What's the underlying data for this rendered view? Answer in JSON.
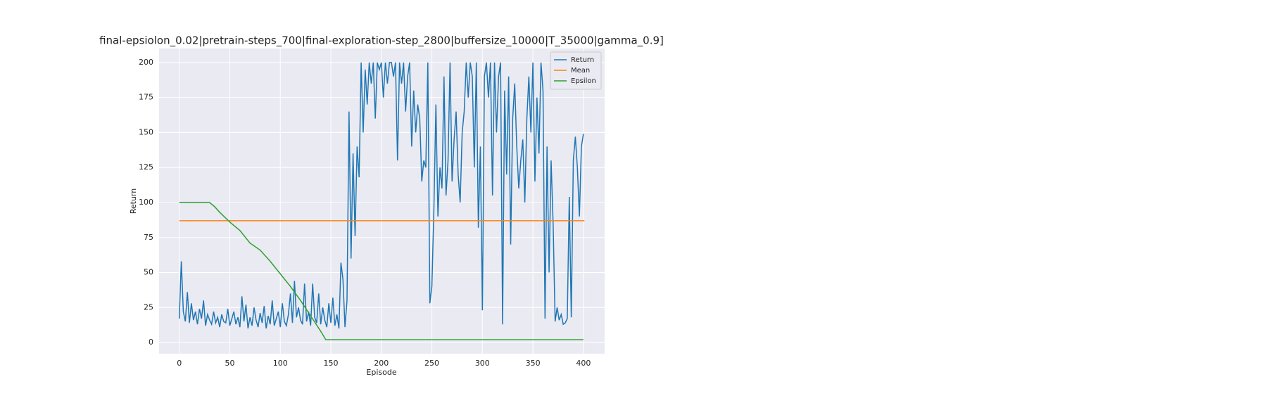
{
  "chart_data": {
    "type": "line",
    "title": "final-epsiolon_0.02|pretrain-steps_700|final-exploration-step_2800|buffersize_10000|T_35000|gamma_0.9]",
    "x_label": "Episode",
    "y_label": "Return",
    "xlim": [
      -20,
      421
    ],
    "ylim": [
      -8,
      210
    ],
    "xticks": [
      0,
      50,
      100,
      150,
      200,
      250,
      300,
      350,
      400
    ],
    "yticks": [
      0,
      25,
      50,
      75,
      100,
      125,
      150,
      175,
      200
    ],
    "grid": true,
    "legend": "upper right",
    "series": [
      {
        "name": "Return",
        "color": "#1f77b4",
        "x": [
          0,
          2,
          4,
          6,
          8,
          10,
          12,
          14,
          16,
          18,
          20,
          22,
          24,
          26,
          28,
          30,
          32,
          34,
          36,
          38,
          40,
          42,
          44,
          46,
          48,
          50,
          52,
          54,
          56,
          58,
          60,
          62,
          64,
          66,
          68,
          70,
          72,
          74,
          76,
          78,
          80,
          82,
          84,
          86,
          88,
          90,
          92,
          94,
          96,
          98,
          100,
          102,
          104,
          106,
          108,
          110,
          112,
          114,
          116,
          118,
          120,
          122,
          124,
          126,
          128,
          130,
          132,
          134,
          136,
          138,
          140,
          142,
          144,
          146,
          148,
          150,
          152,
          154,
          156,
          158,
          160,
          162,
          164,
          166,
          168,
          170,
          172,
          174,
          176,
          178,
          180,
          182,
          184,
          186,
          188,
          190,
          192,
          194,
          196,
          198,
          200,
          202,
          204,
          206,
          208,
          210,
          212,
          214,
          216,
          218,
          220,
          222,
          224,
          226,
          228,
          230,
          232,
          234,
          236,
          238,
          240,
          242,
          244,
          246,
          248,
          250,
          252,
          254,
          256,
          258,
          260,
          262,
          264,
          266,
          268,
          270,
          272,
          274,
          276,
          278,
          280,
          282,
          284,
          286,
          288,
          290,
          292,
          294,
          296,
          298,
          300,
          302,
          304,
          306,
          308,
          310,
          312,
          314,
          316,
          318,
          320,
          322,
          324,
          326,
          328,
          330,
          332,
          334,
          336,
          338,
          340,
          342,
          344,
          346,
          348,
          350,
          352,
          354,
          356,
          358,
          360,
          362,
          364,
          366,
          368,
          370,
          372,
          374,
          376,
          378,
          380,
          382,
          384,
          386,
          388,
          390,
          392,
          394,
          396,
          398,
          400
        ],
        "values": [
          17,
          58,
          22,
          15,
          36,
          14,
          28,
          16,
          22,
          13,
          24,
          17,
          30,
          12,
          20,
          16,
          13,
          22,
          14,
          18,
          11,
          20,
          15,
          14,
          24,
          12,
          17,
          22,
          13,
          18,
          11,
          33,
          15,
          27,
          10,
          18,
          12,
          25,
          16,
          11,
          21,
          14,
          26,
          10,
          19,
          13,
          30,
          12,
          17,
          22,
          11,
          28,
          15,
          12,
          20,
          35,
          14,
          44,
          18,
          25,
          16,
          13,
          42,
          15,
          22,
          12,
          42,
          18,
          14,
          35,
          13,
          25,
          16,
          11,
          28,
          14,
          32,
          12,
          20,
          10,
          57,
          45,
          11,
          30,
          165,
          60,
          135,
          76,
          140,
          118,
          200,
          150,
          195,
          170,
          200,
          185,
          200,
          160,
          200,
          195,
          200,
          175,
          200,
          185,
          200,
          200,
          190,
          200,
          130,
          200,
          185,
          200,
          165,
          190,
          200,
          140,
          180,
          150,
          170,
          160,
          115,
          130,
          125,
          200,
          28,
          40,
          95,
          170,
          90,
          125,
          110,
          190,
          105,
          130,
          200,
          115,
          145,
          165,
          120,
          100,
          150,
          165,
          200,
          175,
          200,
          190,
          125,
          200,
          82,
          140,
          23,
          190,
          200,
          175,
          200,
          105,
          200,
          150,
          190,
          200,
          13,
          180,
          120,
          190,
          70,
          160,
          185,
          140,
          110,
          130,
          145,
          100,
          160,
          190,
          150,
          200,
          115,
          175,
          135,
          200,
          180,
          17,
          140,
          50,
          130,
          85,
          15,
          25,
          16,
          20,
          13,
          14,
          17,
          104,
          18,
          130,
          147,
          125,
          90,
          140,
          149
        ]
      },
      {
        "name": "Mean",
        "color": "#ff7f0e",
        "x": [
          0,
          401
        ],
        "values": [
          87,
          87
        ]
      },
      {
        "name": "Epsilon",
        "color": "#2ca02c",
        "x": [
          0,
          30,
          35,
          40,
          50,
          60,
          70,
          80,
          90,
          100,
          110,
          120,
          130,
          140,
          145,
          400
        ],
        "values": [
          100,
          100,
          97,
          93,
          86,
          80,
          71,
          66,
          58,
          49,
          40,
          30,
          19,
          8,
          2,
          2
        ]
      }
    ]
  }
}
